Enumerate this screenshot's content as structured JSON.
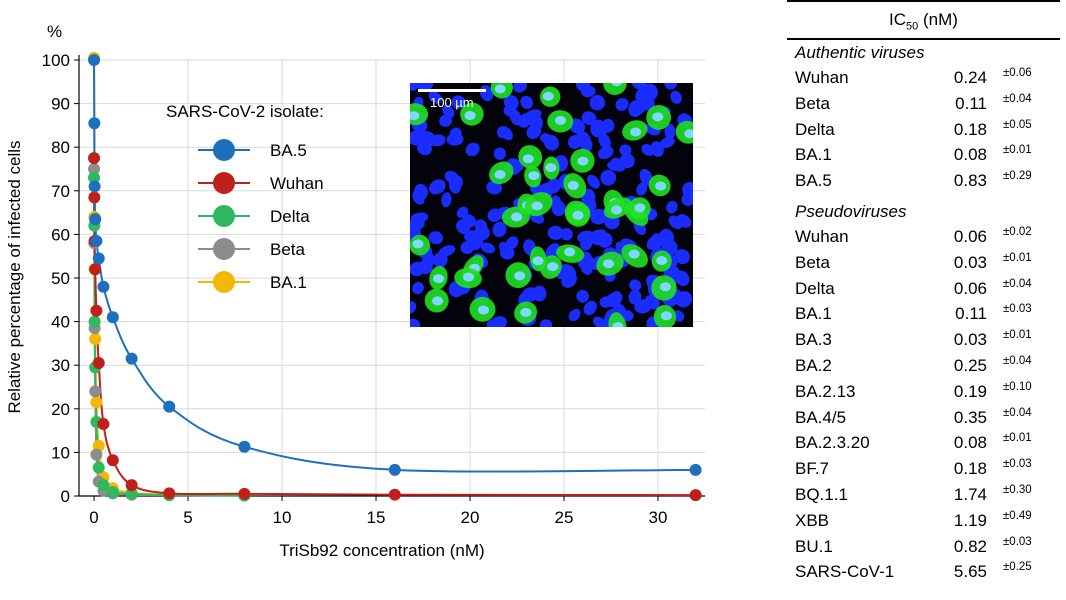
{
  "chart_data": {
    "type": "line",
    "ylabel": "Relative percentage of infected cells",
    "yunit": "%",
    "xlabel": "TriSb92 concentration (nM)",
    "xlim": [
      -0.8,
      32.5
    ],
    "ylim": [
      0,
      100
    ],
    "xticks": [
      0,
      5,
      10,
      15,
      20,
      25,
      30
    ],
    "yticks": [
      0,
      10,
      20,
      30,
      40,
      50,
      60,
      70,
      80,
      90,
      100
    ],
    "grid": true,
    "legend_title": "SARS-CoV-2 isolate:",
    "legend_position": "upper-left-center",
    "series": [
      {
        "name": "BA.5",
        "color": "#1f6fbf",
        "ic50": 0.83,
        "x": [
          0.0,
          0.0156,
          0.031,
          0.0625,
          0.125,
          0.25,
          0.5,
          1,
          2,
          4,
          8,
          16,
          32
        ],
        "y": [
          100,
          85.5,
          71,
          63.5,
          58.5,
          54.5,
          48,
          41,
          31.5,
          20.5,
          11.3,
          6.0,
          6.0
        ]
      },
      {
        "name": "Wuhan",
        "color": "#c0201c",
        "ic50": 0.24,
        "x": [
          0.0,
          0.0156,
          0.031,
          0.0625,
          0.125,
          0.25,
          0.5,
          1,
          2,
          4,
          8,
          16,
          32
        ],
        "y": [
          77.5,
          68.5,
          58.5,
          52,
          42.5,
          30.5,
          16.5,
          8.2,
          2.5,
          0.6,
          0.5,
          0.3,
          0.2
        ]
      },
      {
        "name": "Delta",
        "color": "#2fb85e",
        "ic50": 0.18,
        "x": [
          0.0,
          0.0156,
          0.031,
          0.0625,
          0.125,
          0.25,
          0.5,
          1,
          2,
          4,
          8
        ],
        "y": [
          73,
          62,
          40,
          29.5,
          17,
          6.5,
          2.5,
          0.9,
          0.5,
          0.2,
          0.1
        ]
      },
      {
        "name": "Beta",
        "color": "#8c8c8c",
        "ic50": 0.11,
        "x": [
          0.0,
          0.0156,
          0.031,
          0.0625,
          0.125,
          0.25,
          0.5,
          1,
          2,
          4,
          8
        ],
        "y": [
          75,
          58,
          38.5,
          24,
          9.5,
          3.3,
          1.2,
          0.6,
          0.3,
          0.2,
          0.1
        ]
      },
      {
        "name": "BA.1",
        "color": "#f5b800",
        "ic50": 0.08,
        "x": [
          0.0,
          0.0156,
          0.031,
          0.0625,
          0.125,
          0.25,
          0.5,
          1,
          2,
          4
        ],
        "y": [
          100.5,
          64,
          52,
          36,
          21.5,
          11.5,
          4.3,
          1.8,
          0.7,
          0.3
        ]
      }
    ],
    "inset": {
      "scalebar_label": "100 µm",
      "cell_colors": [
        "#1a2cff",
        "#20e020",
        "#7fd8ff"
      ]
    }
  },
  "ic50_table": {
    "header": "IC",
    "header_sub": "50",
    "header_unit": " (nM)",
    "sections": [
      {
        "title": "Authentic viruses",
        "rows": [
          {
            "name": "Wuhan",
            "value": "0.24",
            "err": "±0.06"
          },
          {
            "name": "Beta",
            "value": "0.11",
            "err": "±0.04"
          },
          {
            "name": "Delta",
            "value": "0.18",
            "err": "±0.05"
          },
          {
            "name": "BA.1",
            "value": "0.08",
            "err": "±0.01"
          },
          {
            "name": "BA.5",
            "value": "0.83",
            "err": "±0.29"
          }
        ]
      },
      {
        "title": "Pseudoviruses",
        "rows": [
          {
            "name": "Wuhan",
            "value": "0.06",
            "err": "±0.02"
          },
          {
            "name": "Beta",
            "value": "0.03",
            "err": "±0.01"
          },
          {
            "name": "Delta",
            "value": "0.06",
            "err": "±0.04"
          },
          {
            "name": "BA.1",
            "value": "0.11",
            "err": "±0.03"
          },
          {
            "name": "BA.3",
            "value": "0.03",
            "err": "±0.01"
          },
          {
            "name": "BA.2",
            "value": "0.25",
            "err": "±0.04"
          },
          {
            "name": "BA.2.13",
            "value": "0.19",
            "err": "±0.10"
          },
          {
            "name": "BA.4/5",
            "value": "0.35",
            "err": "±0.04"
          },
          {
            "name": "BA.2.3.20",
            "value": "0.08",
            "err": "±0.01"
          },
          {
            "name": "BF.7",
            "value": "0.18",
            "err": "±0.03"
          },
          {
            "name": "BQ.1.1",
            "value": "1.74",
            "err": "±0.30"
          },
          {
            "name": "XBB",
            "value": "1.19",
            "err": "±0.49"
          },
          {
            "name": "BU.1",
            "value": "0.82",
            "err": "±0.03"
          },
          {
            "name": "SARS-CoV-1",
            "value": "5.65",
            "err": "±0.25"
          }
        ]
      }
    ]
  }
}
